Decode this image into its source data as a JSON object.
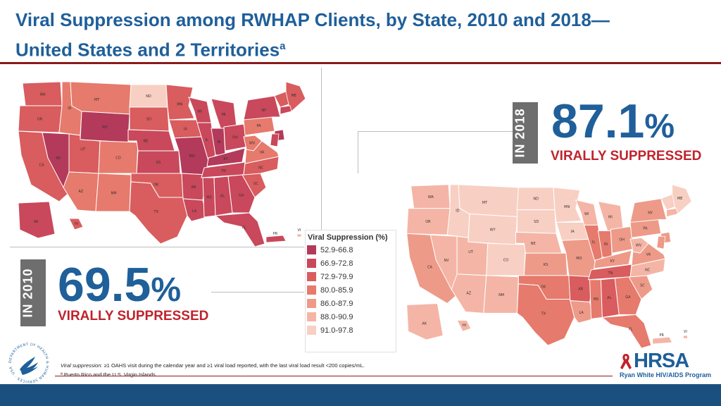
{
  "title": {
    "line1": "Viral Suppression among RWHAP Clients, by State, 2010 and 2018—",
    "line2": "United States and 2 Territories",
    "superscript": "a"
  },
  "stat_2018": {
    "year_label": "IN 2018",
    "value": "87.1",
    "unit": "%",
    "caption": "VIRALLY SUPPRESSED"
  },
  "stat_2010": {
    "year_label": "IN 2010",
    "value": "69.5",
    "unit": "%",
    "caption": "VIRALLY SUPPRESSED"
  },
  "legend": {
    "title": "Viral Suppression (%)",
    "items": [
      {
        "label": "52.9-66.8",
        "color": "#b33a5a"
      },
      {
        "label": "66.9-72.8",
        "color": "#c9485b"
      },
      {
        "label": "72.9-79.9",
        "color": "#d95c5e"
      },
      {
        "label": "80.0-85.9",
        "color": "#e67a6c"
      },
      {
        "label": "86.0-87.9",
        "color": "#ee9a88"
      },
      {
        "label": "88.0-90.9",
        "color": "#f4b5a6"
      },
      {
        "label": "91.0-97.8",
        "color": "#f8cfc3"
      }
    ]
  },
  "footnote": {
    "definition_term": "Viral suppression:",
    "definition_text": " ≥1 OAHS visit during the calendar year and ≥1 viral load reported, with the last viral load result <200 copies/mL.",
    "territories_note": "ª Puerto Rico and the U.S. Virgin Islands."
  },
  "logo": {
    "hrsa_word": "HRSA",
    "hrsa_sub": "Ryan White HIV/AIDS Program",
    "hhs_ring_text": "DEPARTMENT OF HEALTH & HUMAN SERVICES · USA"
  },
  "map_2010": {
    "states": [
      {
        "abbr": "WA",
        "color": "#d95c5e"
      },
      {
        "abbr": "OR",
        "color": "#d95c5e"
      },
      {
        "abbr": "CA",
        "color": "#d95c5e"
      },
      {
        "abbr": "NV",
        "color": "#b33a5a"
      },
      {
        "abbr": "ID",
        "color": "#e67a6c"
      },
      {
        "abbr": "MT",
        "color": "#e67a6c"
      },
      {
        "abbr": "WY",
        "color": "#b33a5a"
      },
      {
        "abbr": "UT",
        "color": "#d95c5e"
      },
      {
        "abbr": "CO",
        "color": "#e67a6c"
      },
      {
        "abbr": "AZ",
        "color": "#e67a6c"
      },
      {
        "abbr": "NM",
        "color": "#e67a6c"
      },
      {
        "abbr": "ND",
        "color": "#f8cfc3"
      },
      {
        "abbr": "SD",
        "color": "#d95c5e"
      },
      {
        "abbr": "NE",
        "color": "#c9485b"
      },
      {
        "abbr": "KS",
        "color": "#c9485b"
      },
      {
        "abbr": "OK",
        "color": "#d95c5e"
      },
      {
        "abbr": "TX",
        "color": "#d95c5e"
      },
      {
        "abbr": "MN",
        "color": "#d95c5e"
      },
      {
        "abbr": "IA",
        "color": "#d95c5e"
      },
      {
        "abbr": "MO",
        "color": "#b33a5a"
      },
      {
        "abbr": "AR",
        "color": "#c9485b"
      },
      {
        "abbr": "LA",
        "color": "#c9485b"
      },
      {
        "abbr": "WI",
        "color": "#c9485b"
      },
      {
        "abbr": "IL",
        "color": "#c9485b"
      },
      {
        "abbr": "MI",
        "color": "#c9485b"
      },
      {
        "abbr": "IN",
        "color": "#b33a5a"
      },
      {
        "abbr": "OH",
        "color": "#c9485b"
      },
      {
        "abbr": "KY",
        "color": "#b33a5a"
      },
      {
        "abbr": "TN",
        "color": "#c9485b"
      },
      {
        "abbr": "MS",
        "color": "#c9485b"
      },
      {
        "abbr": "AL",
        "color": "#c9485b"
      },
      {
        "abbr": "GA",
        "color": "#c9485b"
      },
      {
        "abbr": "FL",
        "color": "#c9485b"
      },
      {
        "abbr": "SC",
        "color": "#d95c5e"
      },
      {
        "abbr": "NC",
        "color": "#d95c5e"
      },
      {
        "abbr": "VA",
        "color": "#e67a6c"
      },
      {
        "abbr": "WV",
        "color": "#e67a6c"
      },
      {
        "abbr": "PA",
        "color": "#e67a6c"
      },
      {
        "abbr": "NY",
        "color": "#c9485b"
      },
      {
        "abbr": "ME",
        "color": "#d95c5e"
      },
      {
        "abbr": "AK",
        "color": "#c9485b"
      },
      {
        "abbr": "HI",
        "color": "#d95c5e"
      }
    ],
    "territories": [
      "PR",
      "VI"
    ]
  },
  "map_2018": {
    "states": [
      {
        "abbr": "WA",
        "color": "#f4b5a6"
      },
      {
        "abbr": "OR",
        "color": "#f4b5a6"
      },
      {
        "abbr": "CA",
        "color": "#ee9a88"
      },
      {
        "abbr": "NV",
        "color": "#f4b5a6"
      },
      {
        "abbr": "ID",
        "color": "#f8cfc3"
      },
      {
        "abbr": "MT",
        "color": "#f8cfc3"
      },
      {
        "abbr": "WY",
        "color": "#f8cfc3"
      },
      {
        "abbr": "UT",
        "color": "#f4b5a6"
      },
      {
        "abbr": "CO",
        "color": "#f8cfc3"
      },
      {
        "abbr": "AZ",
        "color": "#f4b5a6"
      },
      {
        "abbr": "NM",
        "color": "#f4b5a6"
      },
      {
        "abbr": "ND",
        "color": "#f8cfc3"
      },
      {
        "abbr": "SD",
        "color": "#f8cfc3"
      },
      {
        "abbr": "NE",
        "color": "#f4b5a6"
      },
      {
        "abbr": "KS",
        "color": "#ee9a88"
      },
      {
        "abbr": "OK",
        "color": "#e67a6c"
      },
      {
        "abbr": "TX",
        "color": "#e67a6c"
      },
      {
        "abbr": "MN",
        "color": "#f8cfc3"
      },
      {
        "abbr": "IA",
        "color": "#f8cfc3"
      },
      {
        "abbr": "MO",
        "color": "#ee9a88"
      },
      {
        "abbr": "AR",
        "color": "#d95c5e"
      },
      {
        "abbr": "LA",
        "color": "#ee9a88"
      },
      {
        "abbr": "WI",
        "color": "#f4b5a6"
      },
      {
        "abbr": "IL",
        "color": "#e67a6c"
      },
      {
        "abbr": "MI",
        "color": "#f4b5a6"
      },
      {
        "abbr": "IN",
        "color": "#e67a6c"
      },
      {
        "abbr": "OH",
        "color": "#ee9a88"
      },
      {
        "abbr": "KY",
        "color": "#ee9a88"
      },
      {
        "abbr": "TN",
        "color": "#d95c5e"
      },
      {
        "abbr": "MS",
        "color": "#e67a6c"
      },
      {
        "abbr": "AL",
        "color": "#d95c5e"
      },
      {
        "abbr": "GA",
        "color": "#e67a6c"
      },
      {
        "abbr": "FL",
        "color": "#e67a6c"
      },
      {
        "abbr": "SC",
        "color": "#ee9a88"
      },
      {
        "abbr": "NC",
        "color": "#f4b5a6"
      },
      {
        "abbr": "VA",
        "color": "#ee9a88"
      },
      {
        "abbr": "WV",
        "color": "#f4b5a6"
      },
      {
        "abbr": "PA",
        "color": "#ee9a88"
      },
      {
        "abbr": "NY",
        "color": "#ee9a88"
      },
      {
        "abbr": "ME",
        "color": "#f8cfc3"
      },
      {
        "abbr": "AK",
        "color": "#f4b5a6"
      },
      {
        "abbr": "HI",
        "color": "#f4b5a6"
      }
    ],
    "territories": [
      "PR",
      "VI"
    ]
  }
}
